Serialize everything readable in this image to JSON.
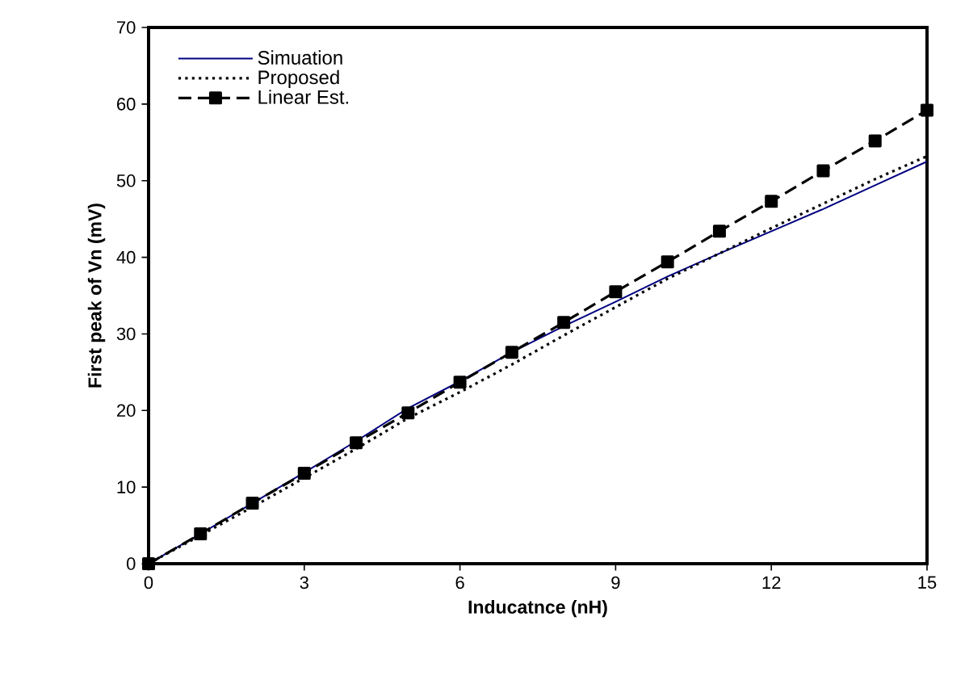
{
  "chart_data": {
    "type": "line",
    "xlabel": "Inducatnce (nH)",
    "ylabel": "First peak of Vn (mV)",
    "x": [
      0,
      1,
      2,
      3,
      4,
      5,
      6,
      7,
      8,
      9,
      10,
      11,
      12,
      13,
      14,
      15
    ],
    "xlim": [
      0,
      15
    ],
    "xticks": [
      0,
      3,
      6,
      9,
      12,
      15
    ],
    "ylim": [
      0,
      70
    ],
    "yticks": [
      0,
      10,
      20,
      30,
      40,
      50,
      60,
      70
    ],
    "grid": false,
    "legend": "top left",
    "series": [
      {
        "name": "Simuation",
        "color": "#000080",
        "line_style": "solid",
        "marker": "none",
        "values": [
          0,
          3.9,
          7.9,
          11.9,
          16,
          20.3,
          23.8,
          27.6,
          31,
          34.2,
          37.5,
          40.5,
          43.4,
          46.3,
          49.4,
          52.5
        ]
      },
      {
        "name": "Proposed",
        "color": "#000000",
        "line_style": "dotted",
        "marker": "none",
        "values": [
          0,
          3.7,
          7.4,
          11.2,
          15,
          19,
          22.4,
          26,
          29.8,
          33.5,
          37.2,
          40.5,
          43.8,
          47,
          50.2,
          53.2
        ]
      },
      {
        "name": "Linear Est.",
        "color": "#000000",
        "line_style": "dashed",
        "marker": "square",
        "values": [
          0,
          3.9,
          7.9,
          11.8,
          15.8,
          19.7,
          23.7,
          27.6,
          31.5,
          35.5,
          39.4,
          43.4,
          47.3,
          51.3,
          55.2,
          59.2
        ]
      }
    ]
  }
}
